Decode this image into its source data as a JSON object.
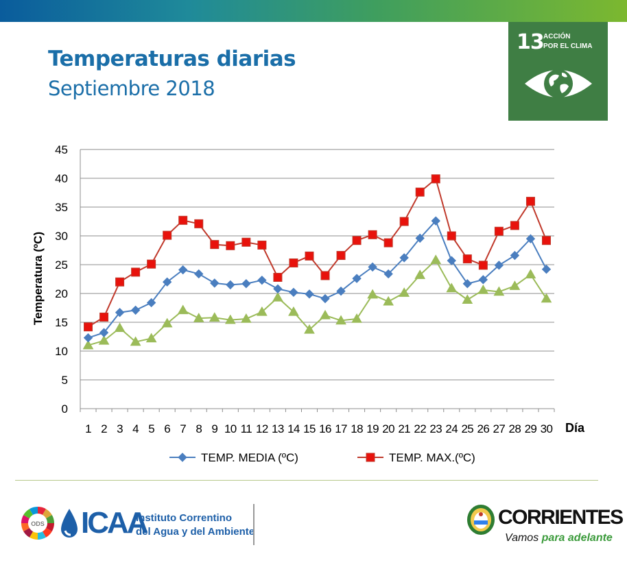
{
  "header": {
    "title": "Temperaturas diarias",
    "subtitle": "Septiembre 2018"
  },
  "sdg": {
    "number": "13",
    "label_line1": "ACCIÓN",
    "label_line2": "POR EL CLIMA",
    "color": "#3f7e44",
    "icon": "eye-globe-icon"
  },
  "chart_data": {
    "type": "line",
    "xlabel": "Día",
    "ylabel": "Temperatura (ºC)",
    "ylim": [
      0,
      45
    ],
    "yticks": [
      0,
      5,
      10,
      15,
      20,
      25,
      30,
      35,
      40,
      45
    ],
    "grid": true,
    "legend_position": "bottom",
    "categories": [
      "1",
      "2",
      "3",
      "4",
      "5",
      "6",
      "7",
      "8",
      "9",
      "10",
      "11",
      "12",
      "13",
      "14",
      "15",
      "16",
      "17",
      "18",
      "19",
      "20",
      "21",
      "22",
      "23",
      "24",
      "25",
      "26",
      "27",
      "28",
      "29",
      "30"
    ],
    "series": [
      {
        "name": "TEMP. MEDIA (ºC)",
        "color": "#4a7ebf",
        "marker": "diamond",
        "values": [
          12.3,
          13.2,
          16.7,
          17.1,
          18.4,
          22.0,
          24.1,
          23.4,
          21.8,
          21.5,
          21.7,
          22.3,
          20.8,
          20.2,
          19.9,
          19.1,
          20.4,
          22.6,
          24.6,
          23.4,
          26.2,
          29.6,
          32.6,
          25.7,
          21.7,
          22.4,
          24.9,
          26.6,
          29.5,
          24.2
        ]
      },
      {
        "name": "TEMP. MAX.(ºC)",
        "color": "#c0392b",
        "fill": "#e8120c",
        "marker": "square",
        "values": [
          14.2,
          15.9,
          22.0,
          23.7,
          25.1,
          30.1,
          32.7,
          32.1,
          28.5,
          28.3,
          28.9,
          28.4,
          22.8,
          25.3,
          26.5,
          23.1,
          26.6,
          29.2,
          30.2,
          28.8,
          32.5,
          37.6,
          39.9,
          30.0,
          26.0,
          24.9,
          30.8,
          31.8,
          36.0,
          29.2
        ]
      },
      {
        "color": "#9bbb59",
        "marker": "triangle",
        "values": [
          11.0,
          11.8,
          14.0,
          11.6,
          12.2,
          14.8,
          17.1,
          15.7,
          15.8,
          15.4,
          15.6,
          16.8,
          19.3,
          16.8,
          13.7,
          16.2,
          15.3,
          15.6,
          19.8,
          18.6,
          20.1,
          23.2,
          25.8,
          20.9,
          18.9,
          20.6,
          20.3,
          21.3,
          23.3,
          19.1
        ]
      }
    ]
  },
  "footer": {
    "ods_label": "ODS",
    "icaa_logo": "ICAA",
    "institute_line1": "Instituto Correntino",
    "institute_line2": "del Agua y del Ambiente",
    "corrientes": "CORRIENTES",
    "slogan_start": "Vamos ",
    "slogan_end": "para adelante",
    "crest_icon": "provincial-crest-icon"
  }
}
